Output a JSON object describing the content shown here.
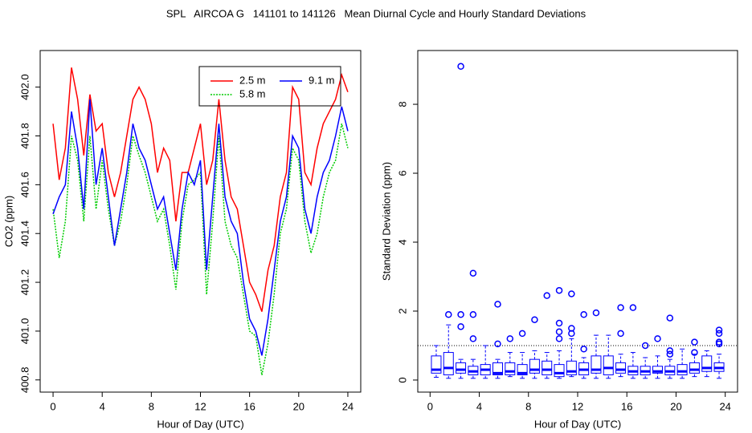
{
  "title": "SPL   AIRCOA G   141101 to 141126   Mean Diurnal Cycle and Hourly Standard Deviations",
  "chart_data": [
    {
      "type": "line",
      "xlabel": "Hour of Day (UTC)",
      "ylabel": "CO2 (ppm)",
      "xlim": [
        -1.05,
        25.05
      ],
      "ylim": [
        400.75,
        402.15
      ],
      "xticks": [
        0,
        4,
        8,
        12,
        16,
        20,
        24
      ],
      "yticks": [
        400.8,
        {
          "value": 401.0,
          "label": "401.0"
        },
        401.2,
        401.4,
        401.6,
        401.8,
        {
          "value": 402.0,
          "label": "402.0"
        }
      ],
      "legend": "topright",
      "x": [
        0,
        0.5,
        1,
        1.5,
        2,
        2.5,
        3,
        3.5,
        4,
        4.5,
        5,
        5.5,
        6,
        6.5,
        7,
        7.5,
        8,
        8.5,
        9,
        9.5,
        10,
        10.5,
        11,
        11.5,
        12,
        12.5,
        13,
        13.5,
        14,
        14.5,
        15,
        15.5,
        16,
        16.5,
        17,
        17.5,
        18,
        18.5,
        19,
        19.5,
        20,
        20.5,
        21,
        21.5,
        22,
        22.5,
        23,
        23.5,
        24
      ],
      "series": [
        {
          "name": "2.5 m",
          "color": "#ff0000",
          "values": [
            401.85,
            401.62,
            401.75,
            402.08,
            401.95,
            401.72,
            401.97,
            401.82,
            401.85,
            401.65,
            401.55,
            401.65,
            401.8,
            401.95,
            402.0,
            401.95,
            401.85,
            401.65,
            401.75,
            401.7,
            401.45,
            401.65,
            401.65,
            401.75,
            401.85,
            401.6,
            401.7,
            401.95,
            401.7,
            401.55,
            401.5,
            401.35,
            401.2,
            401.15,
            401.08,
            401.25,
            401.35,
            401.55,
            401.65,
            402.0,
            401.95,
            401.65,
            401.6,
            401.75,
            401.85,
            401.9,
            401.95,
            402.05,
            401.98
          ]
        },
        {
          "name": "5.8 m",
          "color": "#00cc00",
          "dash": "dotted",
          "values": [
            401.5,
            401.3,
            401.45,
            401.8,
            401.7,
            401.45,
            401.8,
            401.5,
            401.7,
            401.5,
            401.35,
            401.45,
            401.6,
            401.8,
            401.72,
            401.65,
            401.55,
            401.45,
            401.5,
            401.35,
            401.17,
            401.45,
            401.6,
            401.62,
            401.65,
            401.15,
            401.45,
            401.8,
            401.45,
            401.35,
            401.3,
            401.15,
            401.0,
            400.98,
            400.82,
            400.95,
            401.15,
            401.4,
            401.5,
            401.75,
            401.7,
            401.45,
            401.32,
            401.4,
            401.55,
            401.65,
            401.7,
            401.85,
            401.75
          ]
        },
        {
          "name": "9.1 m",
          "color": "#0000ff",
          "values": [
            401.48,
            401.55,
            401.6,
            401.9,
            401.75,
            401.5,
            401.95,
            401.6,
            401.75,
            401.55,
            401.35,
            401.5,
            401.65,
            401.85,
            401.75,
            401.7,
            401.6,
            401.5,
            401.55,
            401.4,
            401.25,
            401.5,
            401.65,
            401.6,
            401.7,
            401.25,
            401.55,
            401.85,
            401.55,
            401.45,
            401.4,
            401.2,
            401.05,
            401.0,
            400.9,
            401.05,
            401.25,
            401.45,
            401.55,
            401.8,
            401.75,
            401.5,
            401.4,
            401.55,
            401.65,
            401.7,
            401.8,
            401.92,
            401.82
          ]
        }
      ]
    },
    {
      "type": "box",
      "xlabel": "Hour of Day (UTC)",
      "ylabel": "Standard Deviation (ppm)",
      "xlim": [
        -1,
        25
      ],
      "ylim": [
        -0.35,
        9.56
      ],
      "xticks": [
        0,
        4,
        8,
        12,
        16,
        20,
        24
      ],
      "yticks": [
        0,
        2,
        4,
        6,
        8
      ],
      "hline": 1,
      "color": "#0000ff",
      "x": [
        0.5,
        1.5,
        2.5,
        3.5,
        4.5,
        5.5,
        6.5,
        7.5,
        8.5,
        9.5,
        10.5,
        11.5,
        12.5,
        13.5,
        14.5,
        15.5,
        16.5,
        17.5,
        18.5,
        19.5,
        20.5,
        21.5,
        22.5,
        23.5
      ],
      "boxes": [
        {
          "low": 0.08,
          "q1": 0.2,
          "median": 0.3,
          "q3": 0.7,
          "high": 1.0,
          "outliers": []
        },
        {
          "low": 0.05,
          "q1": 0.15,
          "median": 0.35,
          "q3": 0.8,
          "high": 1.6,
          "outliers": [
            1.9
          ]
        },
        {
          "low": 0.05,
          "q1": 0.2,
          "median": 0.3,
          "q3": 0.5,
          "high": 0.6,
          "outliers": [
            1.55,
            1.9,
            9.1
          ]
        },
        {
          "low": 0.05,
          "q1": 0.15,
          "median": 0.25,
          "q3": 0.4,
          "high": 0.6,
          "outliers": [
            1.2,
            1.9,
            3.1
          ]
        },
        {
          "low": 0.05,
          "q1": 0.15,
          "median": 0.3,
          "q3": 0.45,
          "high": 1.0,
          "outliers": []
        },
        {
          "low": 0.05,
          "q1": 0.15,
          "median": 0.2,
          "q3": 0.5,
          "high": 0.6,
          "outliers": [
            1.05,
            2.2
          ]
        },
        {
          "low": 0.1,
          "q1": 0.15,
          "median": 0.25,
          "q3": 0.5,
          "high": 0.8,
          "outliers": [
            1.2
          ]
        },
        {
          "low": 0.05,
          "q1": 0.15,
          "median": 0.2,
          "q3": 0.45,
          "high": 0.8,
          "outliers": [
            1.35
          ]
        },
        {
          "low": 0.05,
          "q1": 0.2,
          "median": 0.3,
          "q3": 0.6,
          "high": 0.85,
          "outliers": [
            1.75
          ]
        },
        {
          "low": 0.05,
          "q1": 0.15,
          "median": 0.3,
          "q3": 0.55,
          "high": 0.8,
          "outliers": [
            2.45
          ]
        },
        {
          "low": 0.05,
          "q1": 0.1,
          "median": 0.2,
          "q3": 0.45,
          "high": 0.85,
          "outliers": [
            1.2,
            1.4,
            1.65,
            2.6
          ]
        },
        {
          "low": 0.1,
          "q1": 0.15,
          "median": 0.25,
          "q3": 0.55,
          "high": 1.2,
          "outliers": [
            1.35,
            1.5,
            2.5
          ]
        },
        {
          "low": 0.05,
          "q1": 0.15,
          "median": 0.3,
          "q3": 0.5,
          "high": 0.65,
          "outliers": [
            0.9,
            1.9
          ]
        },
        {
          "low": 0.05,
          "q1": 0.2,
          "median": 0.3,
          "q3": 0.7,
          "high": 1.3,
          "outliers": [
            1.95
          ]
        },
        {
          "low": 0.05,
          "q1": 0.15,
          "median": 0.35,
          "q3": 0.7,
          "high": 1.3,
          "outliers": []
        },
        {
          "low": 0.1,
          "q1": 0.2,
          "median": 0.3,
          "q3": 0.5,
          "high": 0.75,
          "outliers": [
            1.35,
            2.1
          ]
        },
        {
          "low": 0.05,
          "q1": 0.15,
          "median": 0.25,
          "q3": 0.4,
          "high": 0.8,
          "outliers": [
            2.1
          ]
        },
        {
          "low": 0.05,
          "q1": 0.15,
          "median": 0.25,
          "q3": 0.4,
          "high": 0.65,
          "outliers": [
            1.0
          ]
        },
        {
          "low": 0.05,
          "q1": 0.2,
          "median": 0.25,
          "q3": 0.4,
          "high": 0.7,
          "outliers": [
            1.2
          ]
        },
        {
          "low": 0.05,
          "q1": 0.15,
          "median": 0.25,
          "q3": 0.4,
          "high": 0.6,
          "outliers": [
            0.75,
            0.85,
            1.8
          ]
        },
        {
          "low": 0.05,
          "q1": 0.15,
          "median": 0.25,
          "q3": 0.45,
          "high": 0.9,
          "outliers": []
        },
        {
          "low": 0.1,
          "q1": 0.2,
          "median": 0.3,
          "q3": 0.5,
          "high": 0.75,
          "outliers": [
            0.8,
            1.1
          ]
        },
        {
          "low": 0.1,
          "q1": 0.25,
          "median": 0.35,
          "q3": 0.7,
          "high": 0.85,
          "outliers": []
        },
        {
          "low": 0.05,
          "q1": 0.25,
          "median": 0.35,
          "q3": 0.5,
          "high": 0.75,
          "outliers": [
            1.05,
            1.1,
            1.35,
            1.45
          ]
        }
      ]
    }
  ]
}
